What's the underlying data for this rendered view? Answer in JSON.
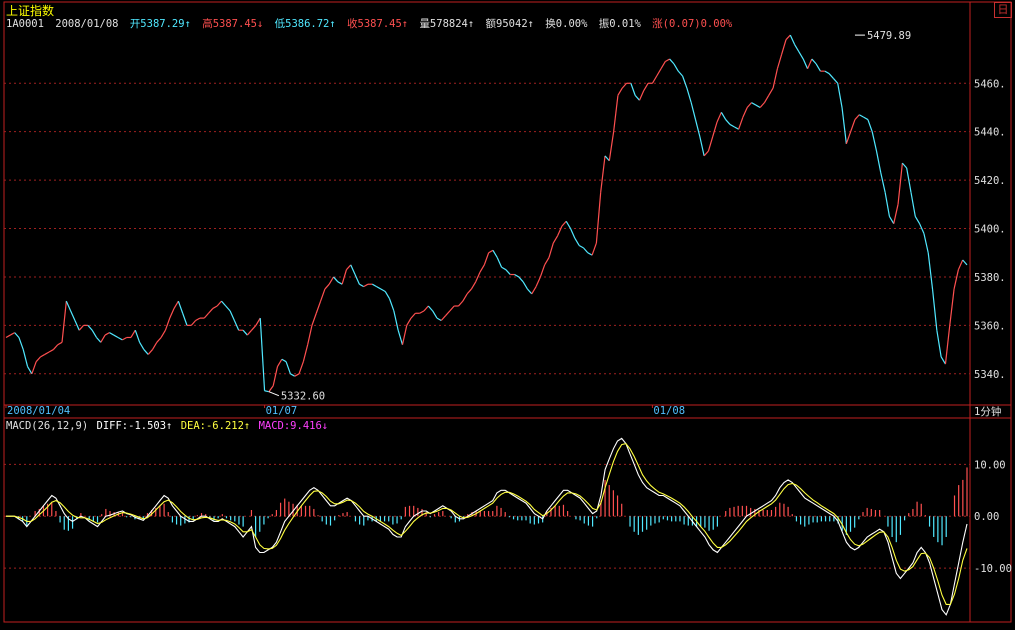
{
  "window": {
    "title": "上证指数",
    "corner_icon": "restore-window-icon",
    "corner_glyph": "日"
  },
  "header": {
    "code": "1A0001",
    "date": "2008/01/08",
    "open": "开5387.29↑",
    "high": "高5387.45↓",
    "low": "低5386.72↑",
    "close": "收5387.45↑",
    "volume": "量578824↑",
    "amount": "额95042↑",
    "turnover": "换0.00%",
    "amplitude": "振0.01%",
    "change": "涨(0.07)0.00%"
  },
  "colors": {
    "up": "#ff5050",
    "down": "#50e8ff",
    "grid": "#a02020",
    "axis_text": "#e0e0e0",
    "diff": "#ffffff",
    "dea": "#ffff40",
    "macd_label": "#ff40ff"
  },
  "time_axis": {
    "labels": [
      {
        "text": "2008/01/04",
        "index": 0
      },
      {
        "text": "01/07",
        "index": 60
      },
      {
        "text": "01/08",
        "index": 150
      }
    ],
    "interval_label": "1分钟"
  },
  "macd_header": {
    "params": "MACD(26,12,9)",
    "diff": "DIFF:-1.503↑",
    "dea": "DEA:-6.212↑",
    "macd": "MACD:9.416↓"
  },
  "chart_data": [
    {
      "type": "line",
      "title": "上证指数",
      "ylim": [
        5330,
        5482
      ],
      "yticks": [
        5340,
        5360,
        5380,
        5400,
        5420,
        5440,
        5460
      ],
      "ytick_labels": [
        "5340.",
        "5360.",
        "5380.",
        "5400.",
        "5420.",
        "5440.",
        "5460."
      ],
      "annotations": [
        {
          "text": "5479.89",
          "index": 197,
          "value": 5479.89
        },
        {
          "text": "5332.60",
          "index": 61,
          "value": 5332.6
        }
      ],
      "series": [
        {
          "values": [
            5355,
            5356,
            5357,
            5355,
            5350,
            5343,
            5340,
            5345,
            5347,
            5348,
            5349,
            5350,
            5352,
            5353,
            5370,
            5366,
            5362,
            5358,
            5360,
            5360,
            5358,
            5355,
            5353,
            5356,
            5357,
            5356,
            5355,
            5354,
            5355,
            5355,
            5358,
            5353,
            5350,
            5348,
            5350,
            5353,
            5355,
            5358,
            5363,
            5367,
            5370,
            5365,
            5360,
            5360,
            5362,
            5363,
            5363,
            5365,
            5367,
            5368,
            5370,
            5368,
            5366,
            5362,
            5358,
            5358,
            5356,
            5358,
            5360,
            5363,
            5333,
            5332.6,
            5335,
            5343,
            5346,
            5345,
            5340,
            5339,
            5340,
            5345,
            5352,
            5360,
            5365,
            5370,
            5375,
            5377,
            5380,
            5378,
            5377,
            5383,
            5385,
            5381,
            5377,
            5376,
            5377,
            5377,
            5376,
            5375,
            5374,
            5371,
            5366,
            5358,
            5352,
            5360,
            5363,
            5365,
            5365,
            5366,
            5368,
            5366,
            5363,
            5362,
            5364,
            5366,
            5368,
            5368,
            5370,
            5373,
            5375,
            5378,
            5382,
            5385,
            5390,
            5391,
            5388,
            5384,
            5383,
            5381,
            5381,
            5380,
            5378,
            5375,
            5373,
            5376,
            5380,
            5385,
            5388,
            5394,
            5397,
            5401,
            5403,
            5400,
            5396,
            5393,
            5392,
            5390,
            5389,
            5394,
            5415,
            5430,
            5428,
            5440,
            5455,
            5458,
            5460,
            5460,
            5455,
            5453,
            5457,
            5460,
            5460,
            5463,
            5466,
            5469,
            5470,
            5468,
            5465,
            5463,
            5458,
            5452,
            5445,
            5438,
            5430,
            5432,
            5438,
            5444,
            5448,
            5445,
            5443,
            5442,
            5441,
            5446,
            5450,
            5452,
            5451,
            5450,
            5452,
            5455,
            5458,
            5466,
            5472,
            5478,
            5479.9,
            5476,
            5473,
            5470,
            5466,
            5470,
            5468,
            5465,
            5465,
            5464,
            5462,
            5460,
            5450,
            5435,
            5440,
            5445,
            5447,
            5446,
            5445,
            5440,
            5432,
            5423,
            5415,
            5405,
            5402,
            5410,
            5427,
            5425,
            5415,
            5405,
            5402,
            5398,
            5390,
            5375,
            5358,
            5347,
            5344,
            5360,
            5375,
            5383,
            5387,
            5385
          ]
        }
      ]
    },
    {
      "type": "bar",
      "title": "MACD(26,12,9)",
      "ylim": [
        -20,
        17
      ],
      "yticks": [
        -10,
        0,
        10
      ],
      "ytick_labels": [
        "-10.00",
        "0.00",
        "10.00"
      ],
      "series": [
        {
          "name": "DIFF",
          "values": [
            0,
            0,
            0,
            -0.5,
            -1,
            -2,
            -1,
            0,
            1,
            2,
            3,
            4,
            3.5,
            2,
            0.5,
            -0.5,
            -1,
            -0.5,
            0,
            -0.3,
            -1,
            -1.5,
            -2,
            -1,
            0,
            0.2,
            0.5,
            0.8,
            1,
            0.5,
            0.3,
            -0.2,
            -0.5,
            -0.8,
            0,
            1,
            2,
            3,
            4,
            3.5,
            2,
            1,
            0,
            -0.5,
            -1,
            -1,
            -0.5,
            0,
            0,
            -0.5,
            -1,
            -1,
            -0.5,
            -1,
            -1.5,
            -2,
            -3,
            -4,
            -3,
            -2,
            -6,
            -7,
            -7,
            -6.5,
            -6,
            -5,
            -3,
            -1,
            0,
            1,
            2,
            3,
            4,
            5,
            5.5,
            5,
            4,
            3,
            2,
            2,
            2.5,
            3,
            3.5,
            3,
            2,
            1,
            0,
            0,
            -0.5,
            -1,
            -1.5,
            -2,
            -2.5,
            -3.5,
            -4,
            -4,
            -2,
            -1,
            0,
            0.5,
            1,
            1,
            0.5,
            1,
            1.5,
            2,
            1.5,
            1,
            0,
            -0.5,
            -0.5,
            0,
            0.5,
            1,
            1.5,
            2,
            2.5,
            3,
            4.5,
            5,
            5,
            4.5,
            4,
            3.5,
            3,
            2.5,
            1.5,
            0.5,
            0,
            -0.5,
            1,
            2,
            3,
            4,
            5,
            5,
            4.5,
            4,
            3.5,
            2.5,
            1.5,
            0.5,
            1,
            4,
            9,
            11,
            13,
            14.5,
            15,
            14,
            12,
            10,
            8,
            6.5,
            5.5,
            5,
            4.5,
            4,
            4,
            3.5,
            3,
            2.5,
            2,
            1,
            0,
            -1,
            -2,
            -3,
            -4,
            -5.5,
            -6.5,
            -7,
            -6,
            -5,
            -4,
            -3,
            -2,
            -1,
            0,
            0.5,
            1,
            1.5,
            2,
            2.5,
            3,
            4,
            5.5,
            6.5,
            7,
            6.5,
            5.5,
            4.5,
            3.5,
            3,
            2.5,
            2,
            1.5,
            1,
            0.5,
            0,
            -1,
            -3,
            -5,
            -6,
            -6.5,
            -6,
            -5,
            -4,
            -3.5,
            -3,
            -2.5,
            -3,
            -5,
            -8,
            -11,
            -12,
            -11,
            -10,
            -9,
            -7,
            -6,
            -7,
            -9,
            -12,
            -15,
            -18,
            -19,
            -17,
            -13,
            -9,
            -5,
            -1.5
          ]
        },
        {
          "name": "DEA",
          "values": [
            0,
            0,
            0,
            -0.2,
            -0.5,
            -1,
            -1,
            -0.5,
            0.3,
            1,
            1.8,
            2.7,
            3,
            2.6,
            1.8,
            0.9,
            0.2,
            -0.2,
            -0.3,
            -0.3,
            -0.6,
            -1,
            -1.4,
            -1.2,
            -0.7,
            -0.3,
            0.1,
            0.4,
            0.7,
            0.6,
            0.4,
            0.1,
            -0.2,
            -0.5,
            -0.3,
            0.4,
            1.2,
            2,
            2.8,
            3.1,
            2.6,
            1.8,
            0.9,
            0.2,
            -0.4,
            -0.7,
            -0.6,
            -0.3,
            -0.2,
            -0.3,
            -0.6,
            -0.8,
            -0.7,
            -0.8,
            -1.1,
            -1.5,
            -2.2,
            -3,
            -3,
            -2.6,
            -4,
            -5.5,
            -6.2,
            -6.3,
            -6.2,
            -5.6,
            -4.3,
            -2.7,
            -1.4,
            -0.2,
            0.9,
            2,
            3,
            4,
            4.8,
            4.9,
            4.5,
            3.8,
            2.9,
            2.4,
            2.4,
            2.7,
            3.1,
            3,
            2.5,
            1.8,
            0.9,
            0.4,
            0,
            -0.5,
            -1,
            -1.5,
            -2,
            -2.7,
            -3.3,
            -3.7,
            -2.9,
            -2,
            -1,
            -0.3,
            0.3,
            0.6,
            0.6,
            0.8,
            1.1,
            1.5,
            1.5,
            1.2,
            0.6,
            0,
            -0.3,
            -0.2,
            0.1,
            0.5,
            1,
            1.5,
            2,
            2.5,
            3.5,
            4.2,
            4.6,
            4.6,
            4.3,
            3.9,
            3.4,
            2.9,
            2.2,
            1.3,
            0.7,
            0.1,
            0.5,
            1.2,
            2,
            3,
            3.9,
            4.5,
            4.5,
            4.3,
            3.9,
            3.2,
            2.4,
            1.5,
            1.2,
            2.5,
            5.5,
            8,
            10.5,
            12.5,
            13.8,
            14,
            13,
            11.5,
            9.8,
            8,
            6.8,
            5.9,
            5.2,
            4.6,
            4.3,
            3.9,
            3.5,
            3,
            2.5,
            1.8,
            0.9,
            -0.1,
            -1,
            -2,
            -2.9,
            -4.1,
            -5.2,
            -6,
            -6,
            -5.5,
            -4.8,
            -3.9,
            -3,
            -2,
            -1,
            -0.3,
            0.3,
            0.9,
            1.4,
            1.9,
            2.4,
            3.1,
            4.2,
            5.3,
            6.1,
            6.3,
            6,
            5.3,
            4.5,
            3.8,
            3.1,
            2.6,
            2,
            1.5,
            1,
            0.5,
            -0.3,
            -1.6,
            -3.2,
            -4.5,
            -5.4,
            -5.7,
            -5.4,
            -4.8,
            -4.2,
            -3.6,
            -3.1,
            -3,
            -4,
            -6,
            -8.5,
            -10.2,
            -10.6,
            -10.3,
            -9.7,
            -8.4,
            -7.2,
            -7.1,
            -8,
            -10,
            -12.5,
            -15.2,
            -17,
            -17,
            -15,
            -12,
            -8.5,
            -6.2
          ]
        }
      ]
    }
  ]
}
